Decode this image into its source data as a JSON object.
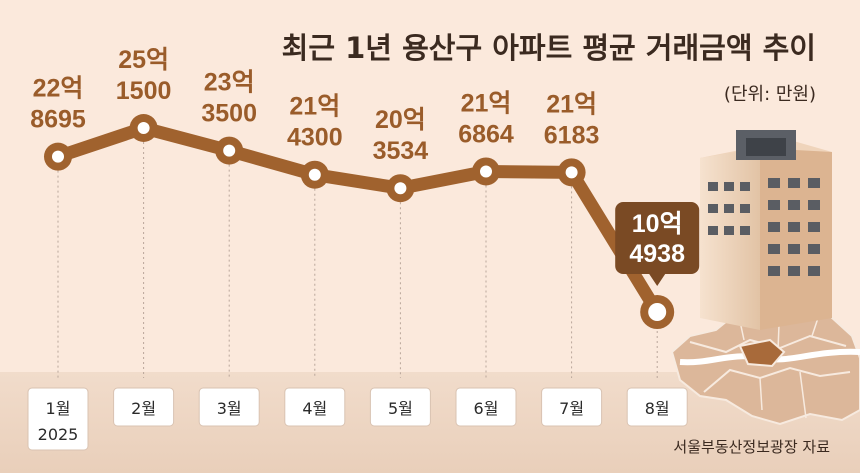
{
  "header": {
    "title": "최근 1년 용산구 아파트 평균 거래금액 추이",
    "unit_note": "(단위: 만원)"
  },
  "source_note": "서울부동산정보광장 자료",
  "chart_data": {
    "type": "line",
    "title": "최근 1년 용산구 아파트 평균 거래금액 추이",
    "unit": "만원",
    "x": [
      "1월",
      "2월",
      "3월",
      "4월",
      "5월",
      "6월",
      "7월",
      "8월"
    ],
    "x_year_label": "2025",
    "values": [
      228695,
      251500,
      233500,
      214300,
      203534,
      216864,
      216183,
      104938
    ],
    "labels": [
      {
        "top": "22억",
        "bottom": "8695"
      },
      {
        "top": "25억",
        "bottom": "1500"
      },
      {
        "top": "23억",
        "bottom": "3500"
      },
      {
        "top": "21억",
        "bottom": "4300"
      },
      {
        "top": "20억",
        "bottom": "3534"
      },
      {
        "top": "21억",
        "bottom": "6864"
      },
      {
        "top": "21억",
        "bottom": "6183"
      },
      {
        "top": "10억",
        "bottom": "4938"
      }
    ],
    "highlight_index": 7,
    "legend": "none",
    "grid": false
  },
  "colors": {
    "background": "#fbe9dc",
    "line": "#a0622e",
    "label": "#9a5c2a",
    "highlight_box": "#7a4a24",
    "marker_fill": "#ffffff",
    "axis_band": "#edd3bf"
  }
}
